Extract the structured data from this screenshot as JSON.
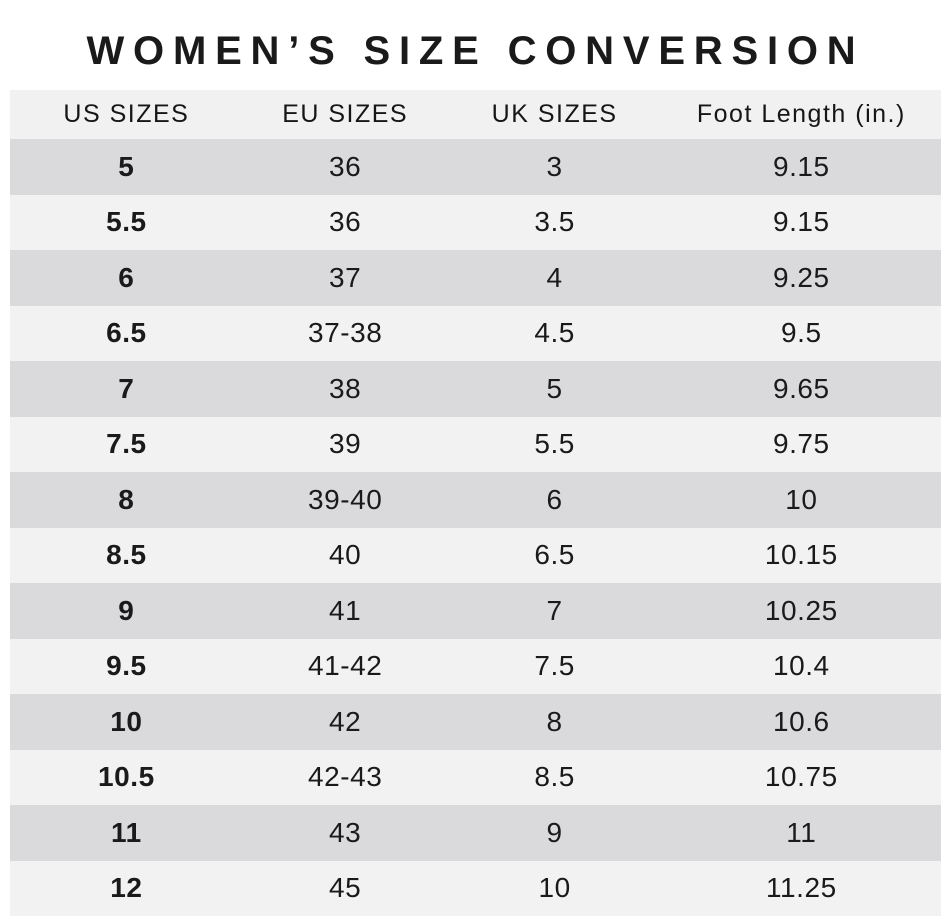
{
  "chart_data": {
    "type": "table",
    "title": "WOMEN’S SIZE CONVERSION",
    "columns": [
      "US SIZES",
      "EU SIZES",
      "UK SIZES",
      "Foot Length (in.)"
    ],
    "rows": [
      [
        "5",
        "36",
        "3",
        "9.15"
      ],
      [
        "5.5",
        "36",
        "3.5",
        "9.15"
      ],
      [
        "6",
        "37",
        "4",
        "9.25"
      ],
      [
        "6.5",
        "37-38",
        "4.5",
        "9.5"
      ],
      [
        "7",
        "38",
        "5",
        "9.65"
      ],
      [
        "7.5",
        "39",
        "5.5",
        "9.75"
      ],
      [
        "8",
        "39-40",
        "6",
        "10"
      ],
      [
        "8.5",
        "40",
        "6.5",
        "10.15"
      ],
      [
        "9",
        "41",
        "7",
        "10.25"
      ],
      [
        "9.5",
        "41-42",
        "7.5",
        "10.4"
      ],
      [
        "10",
        "42",
        "8",
        "10.6"
      ],
      [
        "10.5",
        "42-43",
        "8.5",
        "10.75"
      ],
      [
        "11",
        "43",
        "9",
        "11"
      ],
      [
        "12",
        "45",
        "10",
        "11.25"
      ]
    ]
  },
  "colors": {
    "text": "#1a1a1a",
    "header_bg": "#f1f1f1",
    "row_dark": "#dadadc",
    "row_light": "#f2f2f3"
  }
}
